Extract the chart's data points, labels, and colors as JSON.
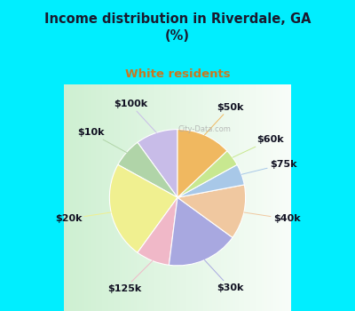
{
  "title": "Income distribution in Riverdale, GA\n(%)",
  "subtitle": "White residents",
  "labels": [
    "$100k",
    "$10k",
    "$20k",
    "$125k",
    "$30k",
    "$40k",
    "$75k",
    "$60k",
    "$50k"
  ],
  "values": [
    10,
    7,
    23,
    8,
    17,
    13,
    5,
    4,
    13
  ],
  "colors": [
    "#c8bce8",
    "#b0d4a8",
    "#f0f090",
    "#f0b8c8",
    "#a8a8e0",
    "#f0c8a0",
    "#a8c8e8",
    "#c8e890",
    "#f0b860"
  ],
  "bg_top": "#00eeff",
  "bg_chart_left": "#c8ecc8",
  "bg_chart_right": "#e8f8f0",
  "title_color": "#1a1a2e",
  "subtitle_color": "#c87820",
  "startangle": 90,
  "label_fontsize": 8,
  "watermark": "City-Data.com"
}
